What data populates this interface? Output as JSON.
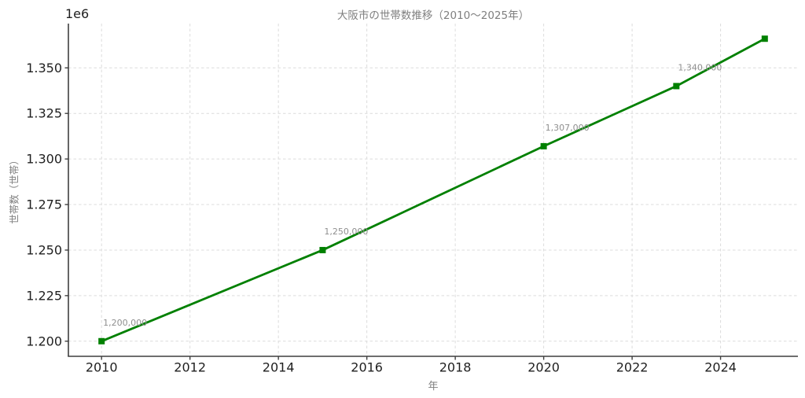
{
  "chart_data": {
    "type": "line",
    "title": "大阪市の世帯数推移（2010〜2025年）",
    "xlabel": "年",
    "ylabel": "世帯数（世帯）",
    "offset_text": "1e6",
    "points": [
      {
        "x": 2010,
        "y": 1200000,
        "label": "1,200,000"
      },
      {
        "x": 2015,
        "y": 1250000,
        "label": "1,250,000"
      },
      {
        "x": 2020,
        "y": 1307000,
        "label": "1,307,000"
      },
      {
        "x": 2023,
        "y": 1340000,
        "label": "1,340,000"
      },
      {
        "x": 2025,
        "y": 1366000,
        "label": ""
      }
    ],
    "xticks": [
      2010,
      2012,
      2014,
      2016,
      2018,
      2020,
      2022,
      2024
    ],
    "yticks": [
      {
        "value": 1200000,
        "label": "1.200"
      },
      {
        "value": 1225000,
        "label": "1.225"
      },
      {
        "value": 1250000,
        "label": "1.250"
      },
      {
        "value": 1275000,
        "label": "1.275"
      },
      {
        "value": 1300000,
        "label": "1.300"
      },
      {
        "value": 1325000,
        "label": "1.325"
      },
      {
        "value": 1350000,
        "label": "1.350"
      }
    ],
    "xlim": [
      2009.25,
      2025.75
    ],
    "ylim": [
      1191700,
      1374300
    ],
    "grid": true,
    "legend": "none",
    "colors": {
      "line": "#008000",
      "marker": "#008000",
      "grid": "#dcdcdc",
      "spine": "#3f3f3f",
      "tick_label": "#1f1f1f",
      "muted_text": "#7f7f7f",
      "annotation": "#8f8f8f",
      "background": "#ffffff"
    }
  }
}
